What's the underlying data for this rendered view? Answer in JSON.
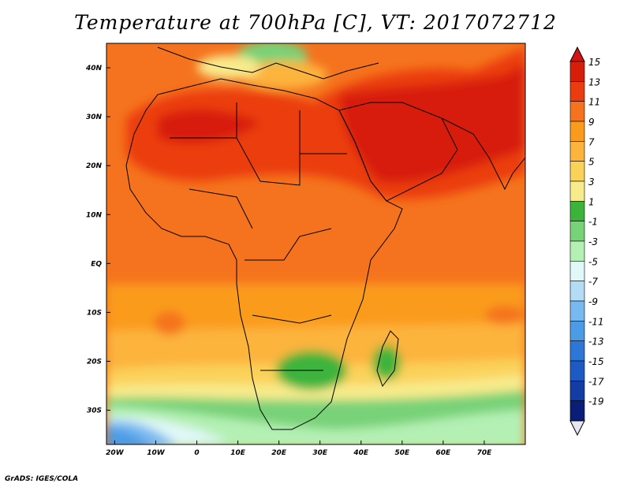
{
  "title": "Temperature at 700hPa [C], VT: 2017072712",
  "credit": "GrADS: IGES/COLA",
  "x_axis": {
    "ticks": [
      {
        "lon": -20,
        "label": "20W"
      },
      {
        "lon": -10,
        "label": "10W"
      },
      {
        "lon": 0,
        "label": "0"
      },
      {
        "lon": 10,
        "label": "10E"
      },
      {
        "lon": 20,
        "label": "20E"
      },
      {
        "lon": 30,
        "label": "30E"
      },
      {
        "lon": 40,
        "label": "40E"
      },
      {
        "lon": 50,
        "label": "50E"
      },
      {
        "lon": 60,
        "label": "60E"
      },
      {
        "lon": 70,
        "label": "70E"
      }
    ],
    "range": [
      -22,
      80
    ]
  },
  "y_axis": {
    "ticks": [
      {
        "lat": 40,
        "label": "40N"
      },
      {
        "lat": 30,
        "label": "30N"
      },
      {
        "lat": 20,
        "label": "20N"
      },
      {
        "lat": 10,
        "label": "10N"
      },
      {
        "lat": 0,
        "label": "EQ"
      },
      {
        "lat": -10,
        "label": "10S"
      },
      {
        "lat": -20,
        "label": "20S"
      },
      {
        "lat": -30,
        "label": "30S"
      }
    ],
    "range": [
      -37,
      45
    ]
  },
  "colorbar": {
    "levels": [
      "15",
      "13",
      "11",
      "9",
      "7",
      "5",
      "3",
      "1",
      "-1",
      "-3",
      "-5",
      "-7",
      "-9",
      "-11",
      "-13",
      "-15",
      "-17",
      "-19"
    ],
    "colors": [
      "#d71e0a",
      "#eb3c0f",
      "#f5731e",
      "#fa9b1e",
      "#fcb43c",
      "#fad25a",
      "#f8eb8c",
      "#3cb43c",
      "#78d278",
      "#b4f0b4",
      "#e1f8f8",
      "#b4dcf5",
      "#78b9f0",
      "#4b9be6",
      "#2d78d7",
      "#1e5ac3",
      "#143ca5",
      "#0a1e78"
    ],
    "top_color": "#d21414",
    "bottom_color": "#e6e6f5"
  }
}
